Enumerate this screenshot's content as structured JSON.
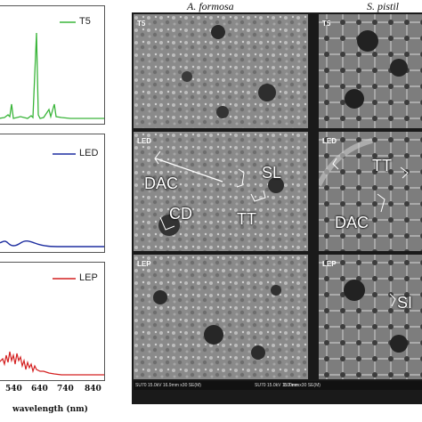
{
  "spectra": {
    "panels": [
      {
        "label": "T5",
        "color": "#3ab53a"
      },
      {
        "label": "LED",
        "color": "#1f2fa0"
      },
      {
        "label": "LEP",
        "color": "#d42020"
      }
    ],
    "x_ticks": [
      "540",
      "640",
      "740",
      "840"
    ],
    "x_axis_label": "wavelength (nm)"
  },
  "sem": {
    "column_titles": [
      "A. formosa",
      "S. pistil"
    ],
    "tags": {
      "row1": [
        "T5",
        "T5"
      ],
      "row2": [
        "LED",
        "LED"
      ],
      "row3": [
        "LEP",
        "LEP"
      ]
    },
    "annotations": {
      "a_led": [
        "DAC",
        "SL",
        "CD",
        "TT"
      ],
      "s_led": [
        "TT",
        "DAC"
      ],
      "s_lep": [
        "SI"
      ]
    },
    "scalebar": {
      "left": "SU70 15.0kV 16.9mm x30 SE(M)",
      "left_scale": "1.00mm",
      "right": "SU70 15.0kV 15.7mm x30 SE(M)"
    }
  },
  "chart_data": [
    {
      "type": "line",
      "series": [
        {
          "name": "T5",
          "color": "#3ab53a"
        }
      ],
      "x_ticks": [
        "540",
        "640",
        "740",
        "840"
      ],
      "xlabel": "wavelength (nm)"
    },
    {
      "type": "line",
      "series": [
        {
          "name": "LED",
          "color": "#1f2fa0"
        }
      ],
      "x_ticks": [
        "540",
        "640",
        "740",
        "840"
      ],
      "xlabel": "wavelength (nm)"
    },
    {
      "type": "line",
      "series": [
        {
          "name": "LEP",
          "color": "#d42020"
        }
      ],
      "x_ticks": [
        "540",
        "640",
        "740",
        "840"
      ],
      "xlabel": "wavelength (nm)"
    }
  ]
}
